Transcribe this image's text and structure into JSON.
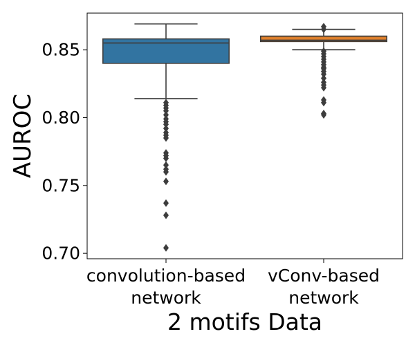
{
  "chart_data": {
    "type": "boxplot",
    "xlabel": "2 motifs Data",
    "ylabel": "AUROC",
    "ylim": [
      0.696,
      0.877
    ],
    "yticks": [
      0.7,
      0.75,
      0.8,
      0.85
    ],
    "ytick_labels": [
      "0.70",
      "0.75",
      "0.80",
      "0.85"
    ],
    "categories": [
      {
        "label_lines": [
          "convolution-based",
          "network"
        ]
      },
      {
        "label_lines": [
          "vConv-based",
          "network"
        ]
      }
    ],
    "grid": false,
    "legend": "none",
    "series": [
      {
        "color": "#3274a1",
        "whisker_low": 0.814,
        "q1": 0.84,
        "median": 0.855,
        "q3": 0.858,
        "whisker_high": 0.869,
        "outliers": [
          0.811,
          0.809,
          0.807,
          0.805,
          0.802,
          0.799,
          0.797,
          0.795,
          0.792,
          0.789,
          0.787,
          0.785,
          0.774,
          0.772,
          0.77,
          0.765,
          0.762,
          0.76,
          0.753,
          0.737,
          0.728,
          0.704
        ]
      },
      {
        "color": "#e1812c",
        "whisker_low": 0.85,
        "q1": 0.856,
        "median": 0.857,
        "q3": 0.86,
        "whisker_high": 0.865,
        "outliers": [
          0.867,
          0.865,
          0.849,
          0.847,
          0.845,
          0.843,
          0.841,
          0.839,
          0.837,
          0.836,
          0.834,
          0.832,
          0.829,
          0.826,
          0.824,
          0.822,
          0.813,
          0.811,
          0.803,
          0.802
        ]
      }
    ]
  }
}
